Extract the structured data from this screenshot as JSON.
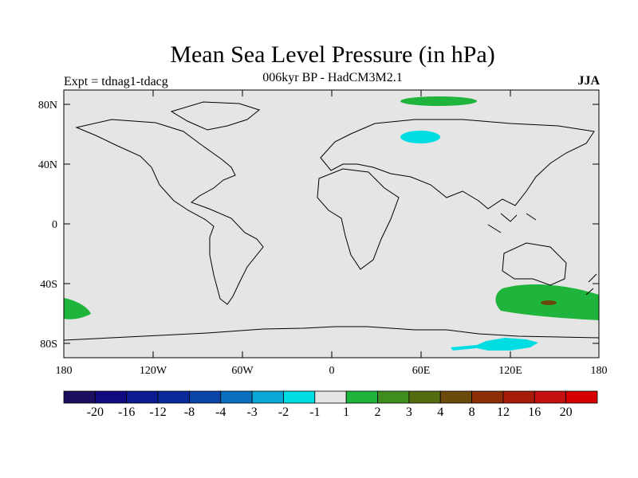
{
  "title": "Mean Sea Level Pressure (in hPa)",
  "subtitle": "006kyr BP - HadCM3M2.1",
  "experiment": "Expt = tdnag1-tdacg",
  "season": "JJA",
  "axes": {
    "lat_ticks": [
      "80N",
      "40N",
      "0",
      "40S",
      "80S"
    ],
    "lon_ticks": [
      "180",
      "120W",
      "60W",
      "0",
      "60E",
      "120E",
      "180"
    ]
  },
  "colorbar": {
    "labels": [
      "-20",
      "-16",
      "-12",
      "-8",
      "-4",
      "-3",
      "-2",
      "-1",
      "1",
      "2",
      "3",
      "4",
      "8",
      "12",
      "16",
      "20"
    ],
    "colors": [
      "#1a0f5e",
      "#120a80",
      "#0b1a8f",
      "#0a2a9c",
      "#0a44a8",
      "#0a6fbf",
      "#0aa6d6",
      "#00dde2",
      "#e5e5e5",
      "#1fb53c",
      "#3f8c1f",
      "#556b10",
      "#6b4a0c",
      "#8c2e08",
      "#a81a0a",
      "#c41010",
      "#d60000"
    ]
  },
  "colors": {
    "ocean_land_fill": "#e5e5e5",
    "positive": "#1fb53c",
    "negative": "#00dde2",
    "strong_positive": "#6b4a0c"
  }
}
